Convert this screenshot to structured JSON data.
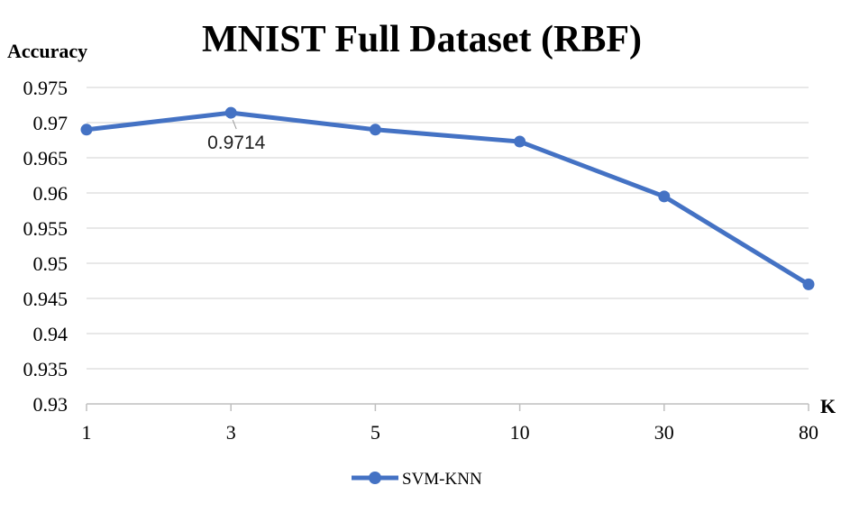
{
  "chart_data": {
    "type": "line",
    "title": "MNIST Full Dataset (RBF)",
    "ylabel": "Accuracy",
    "xlabel": "K",
    "categories": [
      "1",
      "3",
      "5",
      "10",
      "30",
      "80"
    ],
    "ylim": [
      0.93,
      0.975
    ],
    "yticks": [
      "0.93",
      "0.935",
      "0.94",
      "0.945",
      "0.95",
      "0.955",
      "0.96",
      "0.965",
      "0.97",
      "0.975"
    ],
    "ytick_values": [
      0.93,
      0.935,
      0.94,
      0.945,
      0.95,
      0.955,
      0.96,
      0.965,
      0.97,
      0.975
    ],
    "grid": true,
    "legend_position": "bottom",
    "series": [
      {
        "name": "SVM-KNN",
        "color": "#4472C4",
        "values": [
          0.969,
          0.9714,
          0.969,
          0.9673,
          0.9595,
          0.947
        ]
      }
    ],
    "annotations": [
      {
        "series": 0,
        "point": 1,
        "text": "0.9714"
      }
    ]
  }
}
